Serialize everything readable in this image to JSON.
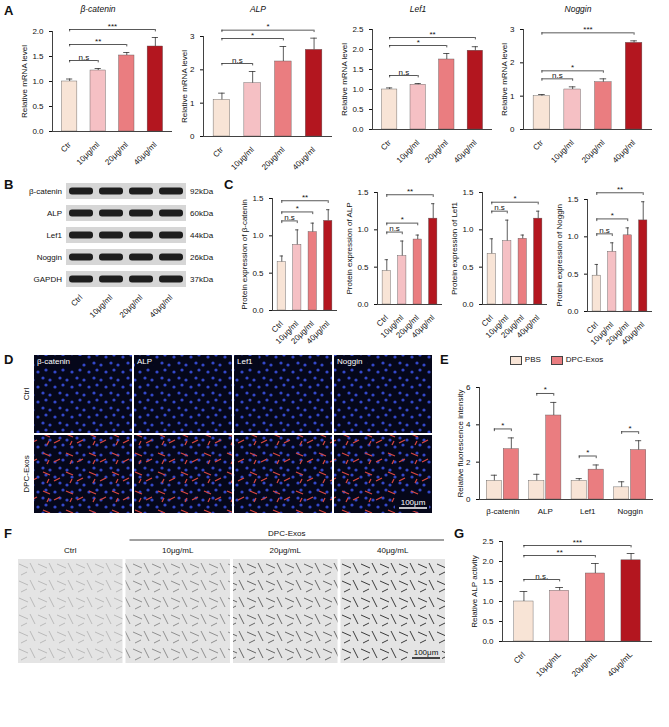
{
  "chart_data": [
    {
      "panel": "A",
      "type": "bar",
      "title": "β-catenin",
      "ylabel": "Relative mRNA level",
      "categories": [
        "Ctr",
        "10μg/ml",
        "20μg/ml",
        "40μg/ml"
      ],
      "values": [
        1.0,
        1.22,
        1.52,
        1.7
      ],
      "errors": [
        0.05,
        0.04,
        0.06,
        0.18
      ],
      "colors": [
        "#f8e4d6",
        "#f5c0c4",
        "#ea7d80",
        "#b3161f"
      ],
      "ylim": [
        0,
        2
      ],
      "yticks": [
        {
          "value": 0,
          "label": "0.0"
        },
        0.5,
        {
          "value": 1,
          "label": "1.0"
        },
        1.5,
        {
          "value": 2,
          "label": "2.0"
        }
      ],
      "annotations": [
        {
          "from": "Ctr",
          "to": "10μg/ml",
          "text": "n.s"
        },
        {
          "from": "Ctr",
          "to": "20μg/ml",
          "text": "**"
        },
        {
          "from": "Ctr",
          "to": "40μg/ml",
          "text": "***"
        }
      ]
    },
    {
      "panel": "A",
      "type": "bar",
      "title": "ALP",
      "ylabel": "Relative mRNA level",
      "categories": [
        "Ctr",
        "10μg/ml",
        "20μg/ml",
        "40μg/ml"
      ],
      "values": [
        1.1,
        1.6,
        2.25,
        2.6
      ],
      "errors": [
        0.2,
        0.35,
        0.45,
        0.35
      ],
      "colors": [
        "#f8e4d6",
        "#f5c0c4",
        "#ea7d80",
        "#b3161f"
      ],
      "ylim": [
        0,
        3
      ],
      "yticks": [
        0,
        1,
        2,
        3
      ],
      "annotations": [
        {
          "from": "Ctr",
          "to": "10μg/ml",
          "text": "n.s"
        },
        {
          "from": "Ctr",
          "to": "20μg/ml",
          "text": "*"
        },
        {
          "from": "Ctr",
          "to": "40μg/ml",
          "text": "*"
        }
      ]
    },
    {
      "panel": "A",
      "type": "bar",
      "title": "Lef1",
      "ylabel": "Relative mRNA level",
      "categories": [
        "Ctr",
        "10μg/ml",
        "20μg/ml",
        "40μg/ml"
      ],
      "values": [
        1.0,
        1.12,
        1.75,
        1.97
      ],
      "errors": [
        0.04,
        0.03,
        0.15,
        0.1
      ],
      "colors": [
        "#f8e4d6",
        "#f5c0c4",
        "#ea7d80",
        "#b3161f"
      ],
      "ylim": [
        0,
        2.5
      ],
      "yticks": [
        {
          "value": 0,
          "label": "0.0"
        },
        0.5,
        {
          "value": 1,
          "label": "1.0"
        },
        1.5,
        {
          "value": 2,
          "label": "2.0"
        },
        2.5
      ],
      "annotations": [
        {
          "from": "Ctr",
          "to": "10μg/ml",
          "text": "n.s"
        },
        {
          "from": "Ctr",
          "to": "20μg/ml",
          "text": "*"
        },
        {
          "from": "Ctr",
          "to": "40μg/ml",
          "text": "**"
        }
      ]
    },
    {
      "panel": "A",
      "type": "bar",
      "title": "Noggin",
      "ylabel": "Relative mRNA level",
      "categories": [
        "Ctr",
        "10μg/ml",
        "20μg/ml",
        "40μg/ml"
      ],
      "values": [
        1.0,
        1.2,
        1.42,
        2.6
      ],
      "errors": [
        0.05,
        0.08,
        0.1,
        0.06
      ],
      "colors": [
        "#f8e4d6",
        "#f5c0c4",
        "#ea7d80",
        "#b3161f"
      ],
      "ylim": [
        0,
        3
      ],
      "yticks": [
        0,
        1,
        2,
        3
      ],
      "annotations": [
        {
          "from": "Ctr",
          "to": "10μg/ml",
          "text": "n.s"
        },
        {
          "from": "Ctr",
          "to": "20μg/ml",
          "text": "*"
        },
        {
          "from": "Ctr",
          "to": "40μg/ml",
          "text": "***"
        }
      ]
    },
    {
      "panel": "C",
      "type": "bar",
      "ylabel": "Protein expression of β-catenin",
      "categories": [
        "Ctrl",
        "10μg/ml",
        "20μg/ml",
        "40μg/ml"
      ],
      "values": [
        0.65,
        0.88,
        1.05,
        1.2
      ],
      "errors": [
        0.08,
        0.2,
        0.12,
        0.15
      ],
      "colors": [
        "#f8e4d6",
        "#f5c0c4",
        "#ea7d80",
        "#b3161f"
      ],
      "ylim": [
        0,
        1.5
      ],
      "yticks": [
        {
          "value": 0,
          "label": "0.0"
        },
        0.5,
        {
          "value": 1,
          "label": "1.0"
        },
        1.5
      ],
      "annotations": [
        {
          "from": "Ctrl",
          "to": "10μg/ml",
          "text": "n.s"
        },
        {
          "from": "Ctrl",
          "to": "20μg/ml",
          "text": "*"
        },
        {
          "from": "Ctrl",
          "to": "40μg/ml",
          "text": "**"
        }
      ]
    },
    {
      "panel": "C",
      "type": "bar",
      "ylabel": "Protein expression of ALP",
      "categories": [
        "Ctrl",
        "10μg/ml",
        "20μg/ml",
        "40μg/ml"
      ],
      "values": [
        0.45,
        0.65,
        0.87,
        1.15
      ],
      "errors": [
        0.15,
        0.2,
        0.06,
        0.2
      ],
      "colors": [
        "#f8e4d6",
        "#f5c0c4",
        "#ea7d80",
        "#b3161f"
      ],
      "ylim": [
        0,
        1.5
      ],
      "yticks": [
        {
          "value": 0,
          "label": "0.0"
        },
        0.5,
        {
          "value": 1,
          "label": "1.0"
        },
        1.5
      ],
      "annotations": [
        {
          "from": "Ctrl",
          "to": "10μg/ml",
          "text": "n.s"
        },
        {
          "from": "Ctrl",
          "to": "20μg/ml",
          "text": "*"
        },
        {
          "from": "Ctrl",
          "to": "40μg/ml",
          "text": "**"
        }
      ]
    },
    {
      "panel": "C",
      "type": "bar",
      "ylabel": "Protein expression of Lef1",
      "categories": [
        "Ctrl",
        "10μg/ml",
        "20μg/ml",
        "40μg/ml"
      ],
      "values": [
        0.68,
        0.85,
        0.88,
        1.15
      ],
      "errors": [
        0.2,
        0.28,
        0.05,
        0.1
      ],
      "colors": [
        "#f8e4d6",
        "#f5c0c4",
        "#ea7d80",
        "#b3161f"
      ],
      "ylim": [
        0,
        1.5
      ],
      "yticks": [
        {
          "value": 0,
          "label": "0.0"
        },
        0.5,
        {
          "value": 1,
          "label": "1.0"
        },
        1.5
      ],
      "annotations": [
        {
          "from": "Ctrl",
          "to": "10μg/ml",
          "text": "n.s"
        },
        {
          "from": "Ctrl",
          "to": "40μg/ml",
          "text": "*"
        }
      ]
    },
    {
      "panel": "C",
      "type": "bar",
      "ylabel": "Protein expression of Noggin",
      "categories": [
        "Ctrl",
        "10μg/ml",
        "20μg/ml",
        "40μg/ml"
      ],
      "values": [
        0.48,
        0.8,
        1.02,
        1.22
      ],
      "errors": [
        0.15,
        0.12,
        0.1,
        0.25
      ],
      "colors": [
        "#f8e4d6",
        "#f5c0c4",
        "#ea7d80",
        "#b3161f"
      ],
      "ylim": [
        0,
        1.5
      ],
      "yticks": [
        {
          "value": 0,
          "label": "0.0"
        },
        0.5,
        {
          "value": 1,
          "label": "1.0"
        },
        1.5
      ],
      "annotations": [
        {
          "from": "Ctrl",
          "to": "10μg/ml",
          "text": "n.s"
        },
        {
          "from": "Ctrl",
          "to": "20μg/ml",
          "text": "*"
        },
        {
          "from": "Ctrl",
          "to": "40μg/ml",
          "text": "**"
        }
      ]
    },
    {
      "panel": "E",
      "type": "bar",
      "ylabel": "Relative fluorescence intensity",
      "categories": [
        "β-catenin",
        "ALP",
        "Lef1",
        "Noggin"
      ],
      "series": [
        {
          "name": "PBS",
          "color": "#f8e4d6",
          "values": [
            1.0,
            1.0,
            1.0,
            0.65
          ],
          "errors": [
            0.3,
            0.35,
            0.12,
            0.3
          ]
        },
        {
          "name": "DPC-Exos",
          "color": "#ea7d80",
          "values": [
            2.7,
            4.5,
            1.6,
            2.65
          ],
          "errors": [
            0.6,
            0.7,
            0.25,
            0.5
          ]
        }
      ],
      "ylim": [
        0,
        6
      ],
      "yticks": [
        0,
        2,
        4,
        6
      ],
      "legend": "top",
      "annotations": [
        {
          "category": "β-catenin",
          "from": "PBS",
          "to": "DPC-Exos",
          "text": "*"
        },
        {
          "category": "ALP",
          "from": "PBS",
          "to": "DPC-Exos",
          "text": "*"
        },
        {
          "category": "Lef1",
          "from": "PBS",
          "to": "DPC-Exos",
          "text": "*"
        },
        {
          "category": "Noggin",
          "from": "PBS",
          "to": "DPC-Exos",
          "text": "*"
        }
      ]
    },
    {
      "panel": "G",
      "type": "bar",
      "ylabel": "Relative ALP activity",
      "categories": [
        "Ctrl",
        "10μg/mL",
        "20μg/mL",
        "40μg/mL"
      ],
      "values": [
        1.0,
        1.27,
        1.7,
        2.03
      ],
      "errors": [
        0.25,
        0.08,
        0.25,
        0.17
      ],
      "colors": [
        "#f8e4d6",
        "#f5c0c4",
        "#ea7d80",
        "#b3161f"
      ],
      "ylim": [
        0,
        2.5
      ],
      "yticks": [
        {
          "value": 0,
          "label": "0.0"
        },
        0.5,
        {
          "value": 1,
          "label": "1.0"
        },
        1.5,
        {
          "value": 2,
          "label": "2.0"
        },
        2.5
      ],
      "annotations": [
        {
          "from": "Ctrl",
          "to": "10μg/mL",
          "text": "n.s."
        },
        {
          "from": "Ctrl",
          "to": "20μg/mL",
          "text": "**"
        },
        {
          "from": "Ctrl",
          "to": "40μg/mL",
          "text": "***"
        }
      ]
    }
  ],
  "blot": {
    "panel": "B",
    "rows": [
      {
        "label": "β-catenin",
        "size": "92kDa"
      },
      {
        "label": "ALP",
        "size": "60kDa"
      },
      {
        "label": "Lef1",
        "size": "44kDa"
      },
      {
        "label": "Noggin",
        "size": "26kDa"
      },
      {
        "label": "GAPDH",
        "size": "37kDa"
      }
    ],
    "lanes": [
      "Ctrl",
      "10μg/ml",
      "20μg/ml",
      "40μg/ml"
    ]
  },
  "immunofluorescence": {
    "panel": "D",
    "columns": [
      "β-catenin",
      "ALP",
      "Lef1",
      "Noggin"
    ],
    "rows": [
      "Ctrl",
      "DPC-Exos"
    ],
    "scale_bar": "100μm"
  },
  "staining": {
    "panel": "F",
    "columns": [
      "Ctrl",
      "10μg/mL",
      "20μg/mL",
      "40μg/mL"
    ],
    "group": "DPC-Exos",
    "scale_bar": "100μm"
  }
}
